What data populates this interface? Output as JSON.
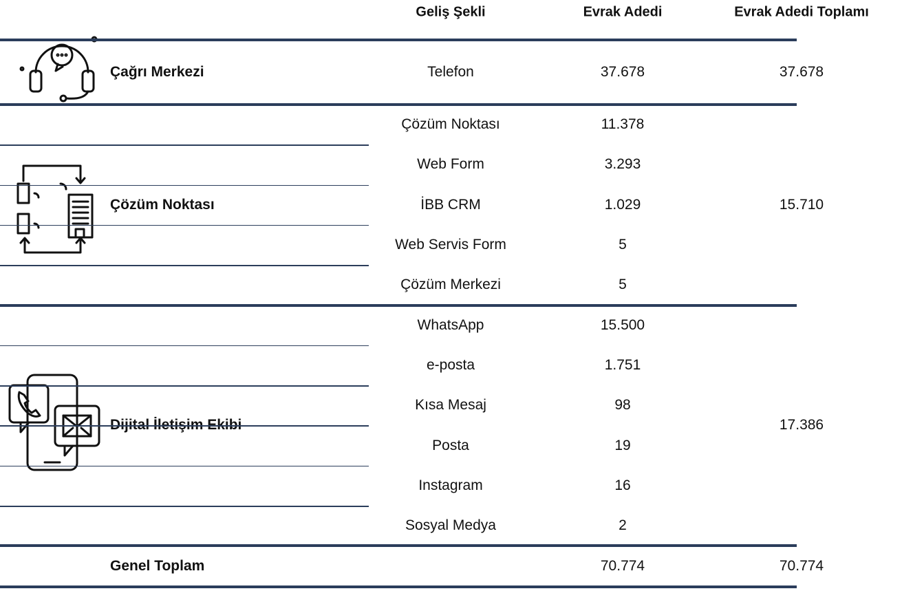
{
  "header": {
    "columns": [
      "Geliş Şekli",
      "Evrak Adedi",
      "Evrak Adedi Toplamı"
    ]
  },
  "groups": [
    {
      "name": "Çağrı Merkezi",
      "rows": [
        [
          "Telefon",
          "37.678"
        ]
      ],
      "total": "37.678"
    },
    {
      "name": "Çözüm Noktası",
      "rows": [
        [
          "Çözüm Noktası",
          "11.378"
        ],
        [
          "Web Form",
          "3.293"
        ],
        [
          "İBB CRM",
          "1.029"
        ],
        [
          "Web Servis Form",
          "5"
        ],
        [
          "Çözüm Merkezi",
          "5"
        ]
      ],
      "total": "15.710"
    },
    {
      "name": "Dijital İletişim Ekibi",
      "rows": [
        [
          "WhatsApp",
          "15.500"
        ],
        [
          "e-posta",
          "1.751"
        ],
        [
          "Kısa Mesaj",
          "98"
        ],
        [
          "Posta",
          "19"
        ],
        [
          "Instagram",
          "16"
        ],
        [
          "Sosyal Medya",
          "2"
        ]
      ],
      "total": "17.386"
    }
  ],
  "footer": {
    "label": "Genel Toplam",
    "count": "70.774",
    "total": "70.774"
  }
}
